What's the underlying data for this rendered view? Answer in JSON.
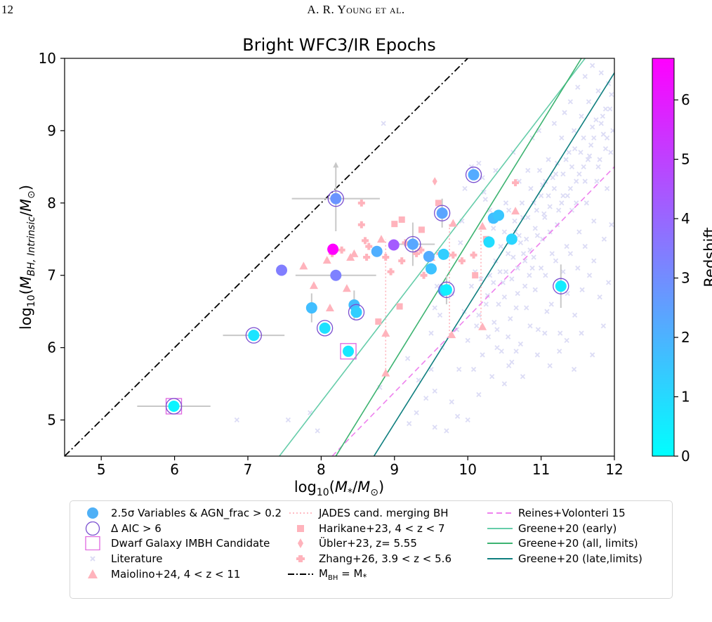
{
  "header": {
    "page_number": "12",
    "running_title": "A. R. Young et al."
  },
  "chart_data": {
    "type": "scatter",
    "title": "Bright WFC3/IR Epochs",
    "xlabel": "log10(M*/M⊙)",
    "ylabel": "log10(M_BH,Intrinsic/M⊙)",
    "xlim": [
      4.5,
      12
    ],
    "ylim": [
      4.5,
      10
    ],
    "xticks": [
      "5",
      "6",
      "7",
      "8",
      "9",
      "10",
      "11",
      "12"
    ],
    "yticks": [
      "5",
      "6",
      "7",
      "8",
      "9",
      "10"
    ],
    "colorbar": {
      "label": "Redshift",
      "range": [
        0,
        6.7
      ],
      "ticks": [
        "0",
        "1",
        "2",
        "3",
        "4",
        "5",
        "6"
      ],
      "colors": [
        "#00ffff",
        "#ff00ff"
      ]
    },
    "grid": false,
    "legend_position": "below",
    "variables": [
      {
        "x": 5.99,
        "y": 5.19,
        "z": 0.3,
        "aic": true,
        "dwarf": true,
        "xerr": 0.5,
        "yerr": 0
      },
      {
        "x": 7.08,
        "y": 6.17,
        "z": 0.7,
        "aic": true,
        "xerr": 0.42,
        "yerr": 0
      },
      {
        "x": 7.46,
        "y": 7.07,
        "z": 3.4,
        "aic": false,
        "xerr": 0,
        "yerr": 0
      },
      {
        "x": 7.87,
        "y": 6.55,
        "z": 1.7,
        "aic": false,
        "xerr": 0,
        "yerr": 0.2
      },
      {
        "x": 8.05,
        "y": 6.27,
        "z": 0.8,
        "aic": true,
        "xerr": 0,
        "yerr": 0
      },
      {
        "x": 8.16,
        "y": 7.36,
        "z": 6.7,
        "aic": false,
        "xerr": 0,
        "yerr": 0
      },
      {
        "x": 8.2,
        "y": 7.0,
        "z": 3.3,
        "aic": false,
        "xerr": 0.55,
        "yerr": 0
      },
      {
        "x": 8.2,
        "y": 8.06,
        "z": 2.8,
        "aic": true,
        "xerr": 0.6,
        "yerr": 0.45,
        "upper": true
      },
      {
        "x": 8.37,
        "y": 5.95,
        "z": 0.6,
        "aic": false,
        "dwarf": true,
        "xerr": 0,
        "yerr": 0
      },
      {
        "x": 8.45,
        "y": 6.59,
        "z": 1.7,
        "aic": false,
        "xerr": 0,
        "yerr": 0.2
      },
      {
        "x": 8.48,
        "y": 6.49,
        "z": 1.3,
        "aic": true,
        "xerr": 0,
        "yerr": 0
      },
      {
        "x": 8.76,
        "y": 7.33,
        "z": 2.1,
        "aic": false,
        "xerr": 0,
        "yerr": 0
      },
      {
        "x": 8.99,
        "y": 7.42,
        "z": 4.3,
        "aic": false,
        "xerr": 0,
        "yerr": 0
      },
      {
        "x": 9.25,
        "y": 7.43,
        "z": 2.3,
        "aic": true,
        "xerr": 0.3,
        "yerr": 0.3
      },
      {
        "x": 9.47,
        "y": 7.26,
        "z": 2.2,
        "aic": false,
        "xerr": 0,
        "yerr": 0
      },
      {
        "x": 9.5,
        "y": 7.09,
        "z": 1.6,
        "aic": false,
        "xerr": 0,
        "yerr": 0
      },
      {
        "x": 9.65,
        "y": 7.86,
        "z": 2.4,
        "aic": true,
        "xerr": 0,
        "yerr": 0.2
      },
      {
        "x": 9.67,
        "y": 7.29,
        "z": 1.3,
        "aic": false,
        "xerr": 0,
        "yerr": 0
      },
      {
        "x": 9.67,
        "y": 6.79,
        "z": 1.2,
        "aic": false,
        "xerr": 0,
        "yerr": 0
      },
      {
        "x": 9.71,
        "y": 6.8,
        "z": 0.4,
        "aic": true,
        "xerr": 0,
        "yerr": 0.2
      },
      {
        "x": 10.08,
        "y": 8.39,
        "z": 2.2,
        "aic": true,
        "xerr": 0,
        "yerr": 0
      },
      {
        "x": 10.29,
        "y": 7.46,
        "z": 0.9,
        "aic": false,
        "xerr": 0,
        "yerr": 0
      },
      {
        "x": 10.35,
        "y": 7.79,
        "z": 1.7,
        "aic": false,
        "xerr": 0,
        "yerr": 0
      },
      {
        "x": 10.42,
        "y": 7.83,
        "z": 1.5,
        "aic": false,
        "xerr": 0,
        "yerr": 0
      },
      {
        "x": 10.6,
        "y": 7.5,
        "z": 1.1,
        "aic": false,
        "xerr": 0,
        "yerr": 0
      },
      {
        "x": 11.27,
        "y": 6.85,
        "z": 0.5,
        "aic": true,
        "xerr": 0,
        "yerr": 0.3
      }
    ],
    "maiolino": [
      {
        "x": 7.76,
        "y": 7.13
      },
      {
        "x": 7.9,
        "y": 6.86
      },
      {
        "x": 8.08,
        "y": 7.21
      },
      {
        "x": 8.12,
        "y": 6.55
      },
      {
        "x": 8.35,
        "y": 6.82
      },
      {
        "x": 8.4,
        "y": 7.25
      },
      {
        "x": 8.45,
        "y": 7.3
      },
      {
        "x": 8.82,
        "y": 7.5
      },
      {
        "x": 8.88,
        "y": 6.2
      },
      {
        "x": 8.88,
        "y": 5.65
      },
      {
        "x": 9.5,
        "y": 7.25
      },
      {
        "x": 9.78,
        "y": 6.18
      },
      {
        "x": 9.8,
        "y": 7.72
      },
      {
        "x": 10.2,
        "y": 6.29
      },
      {
        "x": 10.2,
        "y": 7.68
      },
      {
        "x": 10.65,
        "y": 7.89
      }
    ],
    "harikane": [
      {
        "x": 8.78,
        "y": 6.36
      },
      {
        "x": 9.0,
        "y": 7.71
      },
      {
        "x": 9.07,
        "y": 6.57
      },
      {
        "x": 9.1,
        "y": 7.77
      },
      {
        "x": 9.37,
        "y": 7.63
      },
      {
        "x": 9.6,
        "y": 8.0
      },
      {
        "x": 10.1,
        "y": 7.0
      },
      {
        "x": 10.25,
        "y": 7.5
      }
    ],
    "ubler": [
      {
        "x": 9.55,
        "y": 8.3
      }
    ],
    "zhang": [
      {
        "x": 8.15,
        "y": 7.3
      },
      {
        "x": 8.28,
        "y": 7.35
      },
      {
        "x": 8.55,
        "y": 8.0
      },
      {
        "x": 8.55,
        "y": 7.7
      },
      {
        "x": 8.6,
        "y": 7.48
      },
      {
        "x": 8.62,
        "y": 7.25
      },
      {
        "x": 8.65,
        "y": 7.4
      },
      {
        "x": 8.88,
        "y": 7.25
      },
      {
        "x": 8.95,
        "y": 7.05
      },
      {
        "x": 9.1,
        "y": 7.2
      },
      {
        "x": 9.15,
        "y": 7.45
      },
      {
        "x": 9.3,
        "y": 7.3
      },
      {
        "x": 9.36,
        "y": 7.35
      },
      {
        "x": 9.4,
        "y": 7.0
      },
      {
        "x": 9.62,
        "y": 7.3
      },
      {
        "x": 9.8,
        "y": 7.28
      },
      {
        "x": 9.92,
        "y": 7.2
      },
      {
        "x": 10.08,
        "y": 7.28
      },
      {
        "x": 10.65,
        "y": 8.28
      }
    ],
    "merging_pairs": [
      {
        "x": 8.88,
        "y1": 5.65,
        "y2": 7.5
      },
      {
        "x": 9.75,
        "y1": 6.18,
        "y2": 7.72
      },
      {
        "x": 10.18,
        "y1": 6.29,
        "y2": 7.68
      }
    ],
    "relations": [
      {
        "name": "Reines+Volonteri 15",
        "color": "#ee82ee",
        "dash": "8,5",
        "x": [
          8.15,
          12.0
        ],
        "y": [
          4.5,
          8.5
        ]
      },
      {
        "name": "Greene+20 (early)",
        "color": "#66cdaa",
        "dash": "",
        "x": [
          7.43,
          11.6
        ],
        "y": [
          4.5,
          10.0
        ]
      },
      {
        "name": "Greene+20 (all, limits)",
        "color": "#3cb371",
        "dash": "",
        "x": [
          8.2,
          11.55
        ],
        "y": [
          4.5,
          10.0
        ]
      },
      {
        "name": "Greene+20 (late,limits)",
        "color": "#0f7f7f",
        "dash": "",
        "x": [
          8.72,
          12.0
        ],
        "y": [
          4.5,
          9.8
        ]
      },
      {
        "name": "M_BH = M*",
        "color": "#000000",
        "dash": "10,4,2,4",
        "x": [
          4.5,
          10.0
        ],
        "y": [
          4.5,
          10.0
        ]
      }
    ],
    "literature": {
      "name": "Literature",
      "points": [
        [
          8.85,
          9.1
        ],
        [
          8.8,
          5.45
        ],
        [
          9.18,
          5.85
        ],
        [
          9.33,
          5.55
        ],
        [
          9.43,
          5.3
        ],
        [
          9.86,
          5.05
        ],
        [
          9.71,
          4.85
        ],
        [
          9.78,
          5.25
        ],
        [
          9.5,
          6.2
        ],
        [
          9.62,
          6.45
        ],
        [
          9.78,
          6.75
        ],
        [
          9.9,
          7.45
        ],
        [
          9.92,
          7.75
        ],
        [
          9.96,
          8.2
        ],
        [
          10.05,
          8.5
        ],
        [
          10.15,
          8.55
        ],
        [
          10.2,
          8.35
        ],
        [
          10.22,
          8.15
        ],
        [
          10.24,
          8.05
        ],
        [
          10.27,
          6.72
        ],
        [
          10.3,
          7.9
        ],
        [
          10.32,
          7.75
        ],
        [
          10.35,
          7.65
        ],
        [
          10.36,
          6.35
        ],
        [
          10.38,
          8.45
        ],
        [
          10.4,
          6.25
        ],
        [
          10.44,
          7.05
        ],
        [
          10.48,
          6.9
        ],
        [
          10.5,
          6.7
        ],
        [
          10.52,
          8.0
        ],
        [
          10.55,
          7.3
        ],
        [
          10.58,
          6.4
        ],
        [
          10.6,
          5.8
        ],
        [
          10.62,
          8.7
        ],
        [
          10.65,
          7.6
        ],
        [
          10.68,
          7.1
        ],
        [
          10.7,
          8.3
        ],
        [
          10.72,
          6.05
        ],
        [
          10.75,
          7.8
        ],
        [
          10.78,
          7.2
        ],
        [
          10.8,
          6.55
        ],
        [
          10.82,
          8.45
        ],
        [
          10.85,
          7.35
        ],
        [
          10.88,
          8.9
        ],
        [
          10.9,
          8.0
        ],
        [
          10.92,
          6.8
        ],
        [
          10.95,
          7.55
        ],
        [
          10.97,
          9.0
        ],
        [
          11.0,
          7.1
        ],
        [
          11.02,
          8.25
        ],
        [
          11.05,
          7.8
        ],
        [
          11.08,
          6.5
        ],
        [
          11.1,
          8.6
        ],
        [
          11.12,
          7.95
        ],
        [
          11.15,
          7.3
        ],
        [
          11.18,
          9.1
        ],
        [
          11.2,
          8.4
        ],
        [
          11.22,
          7.7
        ],
        [
          11.25,
          6.9
        ],
        [
          11.28,
          8.9
        ],
        [
          11.3,
          8.1
        ],
        [
          11.32,
          9.25
        ],
        [
          11.35,
          7.4
        ],
        [
          11.38,
          8.7
        ],
        [
          11.4,
          9.4
        ],
        [
          11.42,
          7.9
        ],
        [
          11.45,
          9.0
        ],
        [
          11.48,
          8.3
        ],
        [
          11.5,
          9.6
        ],
        [
          11.52,
          7.6
        ],
        [
          11.55,
          9.2
        ],
        [
          11.58,
          8.5
        ],
        [
          11.6,
          9.75
        ],
        [
          11.62,
          8.0
        ],
        [
          11.65,
          9.4
        ],
        [
          11.68,
          8.8
        ],
        [
          11.7,
          9.9
        ],
        [
          11.72,
          7.75
        ],
        [
          11.75,
          9.15
        ],
        [
          11.78,
          9.55
        ],
        [
          11.8,
          8.6
        ],
        [
          11.82,
          9.8
        ],
        [
          11.85,
          8.95
        ],
        [
          11.88,
          9.3
        ],
        [
          11.9,
          8.2
        ],
        [
          11.92,
          9.65
        ],
        [
          11.95,
          8.7
        ],
        [
          11.98,
          9.0
        ],
        [
          10.1,
          7.05
        ],
        [
          10.12,
          6.3
        ],
        [
          10.18,
          6.95
        ],
        [
          10.25,
          6.6
        ],
        [
          10.3,
          7.0
        ],
        [
          10.42,
          6.6
        ],
        [
          10.46,
          5.95
        ],
        [
          10.55,
          6.15
        ],
        [
          10.6,
          6.95
        ],
        [
          10.66,
          6.55
        ],
        [
          10.72,
          7.45
        ],
        [
          10.78,
          6.85
        ],
        [
          10.84,
          7.0
        ],
        [
          10.9,
          7.25
        ],
        [
          10.96,
          6.25
        ],
        [
          11.02,
          7.5
        ],
        [
          11.06,
          7.0
        ],
        [
          11.14,
          6.6
        ],
        [
          11.2,
          7.2
        ],
        [
          11.26,
          6.2
        ],
        [
          11.3,
          7.05
        ],
        [
          11.36,
          6.75
        ],
        [
          11.4,
          7.3
        ],
        [
          11.46,
          6.45
        ],
        [
          11.5,
          7.1
        ],
        [
          11.56,
          6.8
        ],
        [
          11.6,
          7.4
        ],
        [
          11.66,
          7.0
        ],
        [
          11.72,
          7.2
        ],
        [
          11.8,
          6.7
        ],
        [
          11.86,
          7.5
        ],
        [
          11.92,
          6.9
        ],
        [
          11.96,
          7.7
        ],
        [
          10.5,
          7.6
        ],
        [
          10.56,
          7.9
        ],
        [
          10.62,
          7.25
        ],
        [
          10.68,
          6.75
        ],
        [
          10.74,
          8.0
        ],
        [
          10.8,
          7.5
        ],
        [
          10.86,
          8.2
        ],
        [
          10.92,
          7.65
        ],
        [
          10.98,
          8.45
        ],
        [
          11.04,
          7.85
        ],
        [
          11.1,
          8.1
        ],
        [
          11.16,
          8.35
        ],
        [
          11.22,
          8.55
        ],
        [
          11.28,
          8.0
        ],
        [
          11.34,
          8.6
        ],
        [
          11.4,
          8.2
        ],
        [
          11.46,
          8.75
        ],
        [
          11.52,
          8.4
        ],
        [
          11.58,
          8.9
        ],
        [
          11.64,
          8.6
        ],
        [
          11.7,
          9.05
        ],
        [
          11.76,
          8.3
        ],
        [
          11.82,
          9.1
        ],
        [
          11.88,
          8.75
        ],
        [
          11.94,
          9.3
        ],
        [
          10.35,
          6.9
        ],
        [
          10.38,
          7.2
        ],
        [
          10.45,
          7.4
        ],
        [
          10.52,
          7.05
        ],
        [
          10.58,
          7.45
        ],
        [
          10.64,
          7.75
        ],
        [
          10.7,
          7.55
        ],
        [
          10.76,
          7.3
        ],
        [
          10.82,
          7.8
        ],
        [
          10.88,
          7.1
        ],
        [
          10.94,
          7.9
        ],
        [
          11.0,
          8.1
        ],
        [
          11.06,
          8.3
        ],
        [
          11.12,
          7.6
        ],
        [
          11.18,
          8.2
        ],
        [
          11.24,
          7.9
        ],
        [
          11.3,
          8.4
        ],
        [
          11.36,
          8.1
        ],
        [
          11.42,
          8.5
        ],
        [
          11.48,
          8.0
        ],
        [
          11.54,
          8.7
        ],
        [
          11.6,
          8.3
        ],
        [
          11.66,
          8.65
        ],
        [
          11.72,
          8.9
        ],
        [
          11.78,
          8.5
        ],
        [
          11.84,
          9.2
        ],
        [
          11.9,
          8.9
        ],
        [
          11.96,
          9.5
        ],
        [
          9.95,
          6.5
        ],
        [
          10.0,
          6.1
        ],
        [
          10.05,
          6.85
        ],
        [
          10.08,
          5.7
        ],
        [
          10.15,
          6.45
        ],
        [
          10.2,
          5.9
        ],
        [
          10.28,
          6.15
        ],
        [
          10.33,
          5.6
        ],
        [
          10.4,
          6.0
        ],
        [
          10.5,
          5.5
        ],
        [
          10.56,
          5.75
        ],
        [
          10.66,
          5.95
        ],
        [
          10.75,
          5.6
        ],
        [
          10.85,
          6.3
        ],
        [
          10.95,
          5.9
        ],
        [
          11.05,
          6.2
        ],
        [
          11.12,
          5.75
        ],
        [
          11.25,
          5.95
        ],
        [
          11.35,
          6.1
        ],
        [
          11.45,
          5.7
        ],
        [
          11.55,
          6.2
        ],
        [
          11.7,
          5.9
        ],
        [
          11.85,
          6.3
        ],
        [
          9.55,
          6.55
        ],
        [
          9.65,
          6.0
        ],
        [
          9.58,
          6.85
        ],
        [
          9.85,
          6.25
        ],
        [
          9.88,
          5.7
        ],
        [
          9.5,
          5.7
        ],
        [
          9.55,
          5.4
        ],
        [
          9.3,
          5.1
        ],
        [
          9.2,
          4.95
        ],
        [
          9.55,
          4.9
        ],
        [
          10.15,
          5.35
        ],
        [
          10.0,
          5.0
        ],
        [
          7.85,
          5.1
        ],
        [
          7.55,
          5.0
        ],
        [
          7.95,
          4.85
        ],
        [
          6.85,
          5.0
        ]
      ]
    },
    "legend": {
      "col1": [
        "2.5σ Variables & AGN_frac > 0.2",
        "Δ AIC > 6",
        "Dwarf Galaxy IMBH Candidate",
        "Literature",
        "Maiolino+24, 4 < z < 11"
      ],
      "col2": [
        "JADES cand. merging BH",
        "Harikane+23, 4 < z < 7",
        "Übler+23, z= 5.55",
        "Zhang+26, 3.9 < z < 5.6",
        "M_BH = M*"
      ],
      "col3": [
        "Reines+Volonteri 15",
        "Greene+20 (early)",
        "Greene+20 (all, limits)",
        "Greene+20 (late,limits)"
      ]
    }
  }
}
